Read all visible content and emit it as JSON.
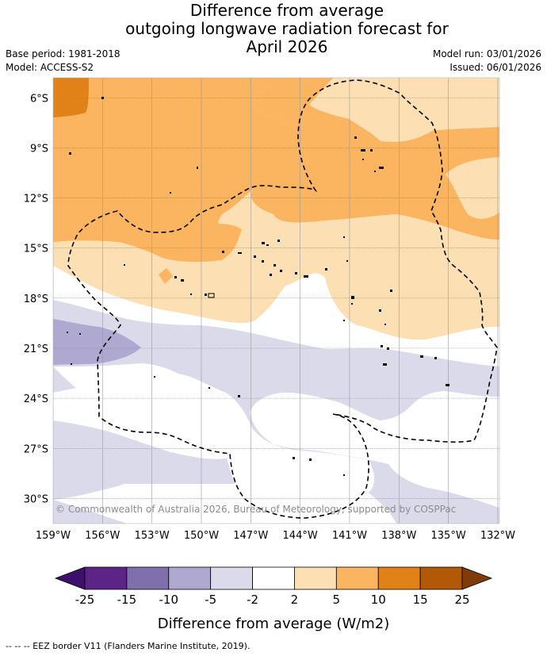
{
  "title": {
    "line1": "Difference from average",
    "line2": "outgoing longwave radiation forecast for",
    "line3": "April 2026"
  },
  "meta": {
    "base_period": "Base period: 1981-2018",
    "model": "Model: ACCESS-S2",
    "model_run": "Model run: 03/01/2026",
    "issued": "Issued: 06/01/2026"
  },
  "map": {
    "copyright": "© Commonwealth of Australia 2026, Bureau of Meteorology, supported by COSPPac",
    "lat_labels": [
      "6°S",
      "9°S",
      "12°S",
      "15°S",
      "18°S",
      "21°S",
      "24°S",
      "27°S",
      "30°S"
    ],
    "lon_labels": [
      "159°W",
      "156°W",
      "153°W",
      "150°W",
      "147°W",
      "144°W",
      "141°W",
      "138°W",
      "135°W",
      "132°W"
    ],
    "lat_values": [
      -6,
      -9,
      -12,
      -15,
      -18,
      -21,
      -24,
      -27,
      -30
    ],
    "lon_values": [
      -159,
      -156,
      -153,
      -150,
      -147,
      -144,
      -141,
      -138,
      -135,
      -132
    ],
    "extent": {
      "lon_min": -159,
      "lon_max": -131.9,
      "lat_max": -4.8,
      "lat_min": -31.5
    }
  },
  "colorbar": {
    "label": "Difference from average (W/m2)",
    "ticks": [
      "-25",
      "-15",
      "-10",
      "-5",
      "-2",
      "2",
      "5",
      "10",
      "15",
      "25"
    ],
    "colors": [
      "#3f0f6e",
      "#5c2486",
      "#7f6fad",
      "#afa8d0",
      "#dadaeb",
      "#ffffff",
      "#fddfb4",
      "#fbb560",
      "#e08218",
      "#b35806",
      "#7f3b08"
    ],
    "colors_key": [
      "below -25",
      "-25 to -15",
      "-15 to -10",
      "-10 to -5",
      "-5 to -2",
      "-2 to 2",
      "2 to 5",
      "5 to 10",
      "10 to 15",
      "15 to 25",
      "above 25"
    ]
  },
  "footer": "--  --  -- EEZ border V11 (Flanders Marine Institute, 2019)."
}
